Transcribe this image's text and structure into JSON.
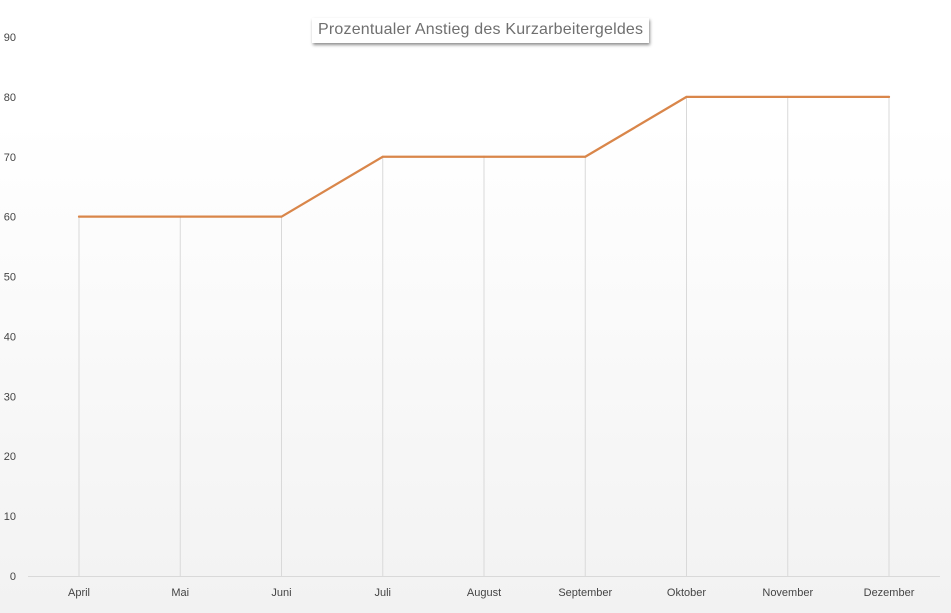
{
  "chart_data": {
    "type": "line",
    "title": "Prozentualer Anstieg des Kurzarbeitergeldes",
    "categories": [
      "April",
      "Mai",
      "Juni",
      "Juli",
      "August",
      "September",
      "Oktober",
      "November",
      "Dezember"
    ],
    "series": [
      {
        "values": [
          60,
          60,
          60,
          70,
          70,
          70,
          80,
          80,
          80
        ],
        "color": "#d9864a"
      }
    ],
    "ylim": [
      0,
      90
    ],
    "yticks": [
      "0",
      "10",
      "20",
      "30",
      "40",
      "50",
      "60",
      "70",
      "80",
      "90"
    ],
    "grid": "vertical drop lines to data points",
    "legend": "none",
    "colors": {
      "line": "#d9864a",
      "drop_lines": "#d9d9d9",
      "axis": "#d9d9d9",
      "text": "#444444",
      "title": "#6f6f6f"
    }
  }
}
